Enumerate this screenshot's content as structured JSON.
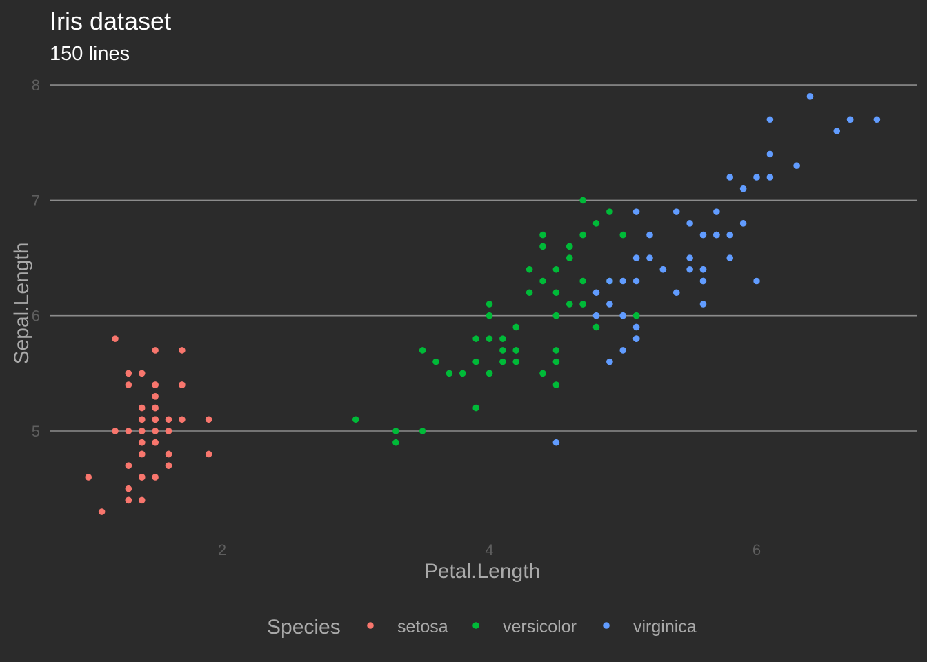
{
  "chart_data": {
    "type": "scatter",
    "title": "Iris dataset",
    "subtitle": "150 lines",
    "xlabel": "Petal.Length",
    "ylabel": "Sepal.Length",
    "xlim": [
      0.75,
      7.25
    ],
    "ylim": [
      4.15,
      8.1
    ],
    "xticks": [
      2,
      4,
      6
    ],
    "yticks": [
      5,
      6,
      7,
      8
    ],
    "grid": "horizontal major lines",
    "legend": {
      "title": "Species",
      "position": "bottom"
    },
    "series": [
      {
        "name": "setosa",
        "color": "#f8766d",
        "points": [
          [
            1.4,
            5.1
          ],
          [
            1.4,
            4.9
          ],
          [
            1.3,
            4.7
          ],
          [
            1.5,
            4.6
          ],
          [
            1.4,
            5.0
          ],
          [
            1.7,
            5.4
          ],
          [
            1.4,
            4.6
          ],
          [
            1.5,
            5.0
          ],
          [
            1.4,
            4.4
          ],
          [
            1.5,
            4.9
          ],
          [
            1.5,
            5.4
          ],
          [
            1.6,
            4.8
          ],
          [
            1.4,
            4.8
          ],
          [
            1.1,
            4.3
          ],
          [
            1.2,
            5.8
          ],
          [
            1.5,
            5.7
          ],
          [
            1.3,
            5.4
          ],
          [
            1.4,
            5.1
          ],
          [
            1.7,
            5.7
          ],
          [
            1.5,
            5.1
          ],
          [
            1.7,
            5.4
          ],
          [
            1.5,
            5.1
          ],
          [
            1.0,
            4.6
          ],
          [
            1.7,
            5.1
          ],
          [
            1.9,
            4.8
          ],
          [
            1.6,
            5.0
          ],
          [
            1.6,
            5.0
          ],
          [
            1.5,
            5.2
          ],
          [
            1.4,
            5.2
          ],
          [
            1.6,
            4.7
          ],
          [
            1.6,
            4.8
          ],
          [
            1.5,
            5.4
          ],
          [
            1.5,
            5.2
          ],
          [
            1.4,
            5.5
          ],
          [
            1.5,
            4.9
          ],
          [
            1.2,
            5.0
          ],
          [
            1.3,
            5.5
          ],
          [
            1.4,
            4.9
          ],
          [
            1.3,
            4.4
          ],
          [
            1.5,
            5.1
          ],
          [
            1.3,
            5.0
          ],
          [
            1.3,
            4.5
          ],
          [
            1.3,
            4.4
          ],
          [
            1.6,
            5.0
          ],
          [
            1.9,
            5.1
          ],
          [
            1.4,
            4.8
          ],
          [
            1.6,
            5.1
          ],
          [
            1.4,
            4.6
          ],
          [
            1.5,
            5.3
          ],
          [
            1.4,
            5.0
          ]
        ]
      },
      {
        "name": "versicolor",
        "color": "#00ba38",
        "points": [
          [
            4.7,
            7.0
          ],
          [
            4.5,
            6.4
          ],
          [
            4.9,
            6.9
          ],
          [
            4.0,
            5.5
          ],
          [
            4.6,
            6.5
          ],
          [
            4.5,
            5.7
          ],
          [
            4.7,
            6.3
          ],
          [
            3.3,
            4.9
          ],
          [
            4.6,
            6.6
          ],
          [
            3.9,
            5.2
          ],
          [
            3.5,
            5.0
          ],
          [
            4.2,
            5.9
          ],
          [
            4.0,
            6.0
          ],
          [
            4.7,
            6.1
          ],
          [
            3.6,
            5.6
          ],
          [
            4.4,
            6.7
          ],
          [
            4.5,
            5.6
          ],
          [
            4.1,
            5.8
          ],
          [
            4.5,
            6.2
          ],
          [
            3.9,
            5.6
          ],
          [
            4.8,
            5.9
          ],
          [
            4.0,
            6.1
          ],
          [
            4.9,
            6.3
          ],
          [
            4.7,
            6.1
          ],
          [
            4.3,
            6.4
          ],
          [
            4.4,
            6.6
          ],
          [
            4.8,
            6.8
          ],
          [
            5.0,
            6.7
          ],
          [
            4.5,
            6.0
          ],
          [
            3.5,
            5.7
          ],
          [
            3.8,
            5.5
          ],
          [
            3.7,
            5.5
          ],
          [
            3.9,
            5.8
          ],
          [
            5.1,
            6.0
          ],
          [
            4.5,
            5.4
          ],
          [
            4.5,
            6.0
          ],
          [
            4.7,
            6.7
          ],
          [
            4.4,
            6.3
          ],
          [
            4.1,
            5.6
          ],
          [
            4.0,
            5.5
          ],
          [
            4.4,
            5.5
          ],
          [
            4.6,
            6.1
          ],
          [
            4.0,
            5.8
          ],
          [
            3.3,
            5.0
          ],
          [
            4.2,
            5.6
          ],
          [
            4.2,
            5.7
          ],
          [
            4.2,
            5.7
          ],
          [
            4.3,
            6.2
          ],
          [
            3.0,
            5.1
          ],
          [
            4.1,
            5.7
          ]
        ]
      },
      {
        "name": "virginica",
        "color": "#619cff",
        "points": [
          [
            6.0,
            6.3
          ],
          [
            5.1,
            5.8
          ],
          [
            5.9,
            7.1
          ],
          [
            5.6,
            6.3
          ],
          [
            5.8,
            6.5
          ],
          [
            6.6,
            7.6
          ],
          [
            4.5,
            4.9
          ],
          [
            6.3,
            7.3
          ],
          [
            5.8,
            6.7
          ],
          [
            6.1,
            7.2
          ],
          [
            5.1,
            6.5
          ],
          [
            5.3,
            6.4
          ],
          [
            5.5,
            6.8
          ],
          [
            5.0,
            5.7
          ],
          [
            5.1,
            5.8
          ],
          [
            5.3,
            6.4
          ],
          [
            5.5,
            6.5
          ],
          [
            6.7,
            7.7
          ],
          [
            6.9,
            7.7
          ],
          [
            5.0,
            6.0
          ],
          [
            5.7,
            6.9
          ],
          [
            4.9,
            5.6
          ],
          [
            6.7,
            7.7
          ],
          [
            4.9,
            6.3
          ],
          [
            5.7,
            6.7
          ],
          [
            6.0,
            7.2
          ],
          [
            4.8,
            6.2
          ],
          [
            4.9,
            6.1
          ],
          [
            5.6,
            6.4
          ],
          [
            5.8,
            7.2
          ],
          [
            6.1,
            7.4
          ],
          [
            6.4,
            7.9
          ],
          [
            5.6,
            6.4
          ],
          [
            5.1,
            6.3
          ],
          [
            5.6,
            6.1
          ],
          [
            6.1,
            7.7
          ],
          [
            5.6,
            6.3
          ],
          [
            5.5,
            6.4
          ],
          [
            4.8,
            6.0
          ],
          [
            5.4,
            6.9
          ],
          [
            5.6,
            6.7
          ],
          [
            5.1,
            6.9
          ],
          [
            5.1,
            5.8
          ],
          [
            5.9,
            6.8
          ],
          [
            5.7,
            6.7
          ],
          [
            5.2,
            6.7
          ],
          [
            5.0,
            6.3
          ],
          [
            5.2,
            6.5
          ],
          [
            5.4,
            6.2
          ],
          [
            5.1,
            5.9
          ]
        ]
      }
    ]
  }
}
